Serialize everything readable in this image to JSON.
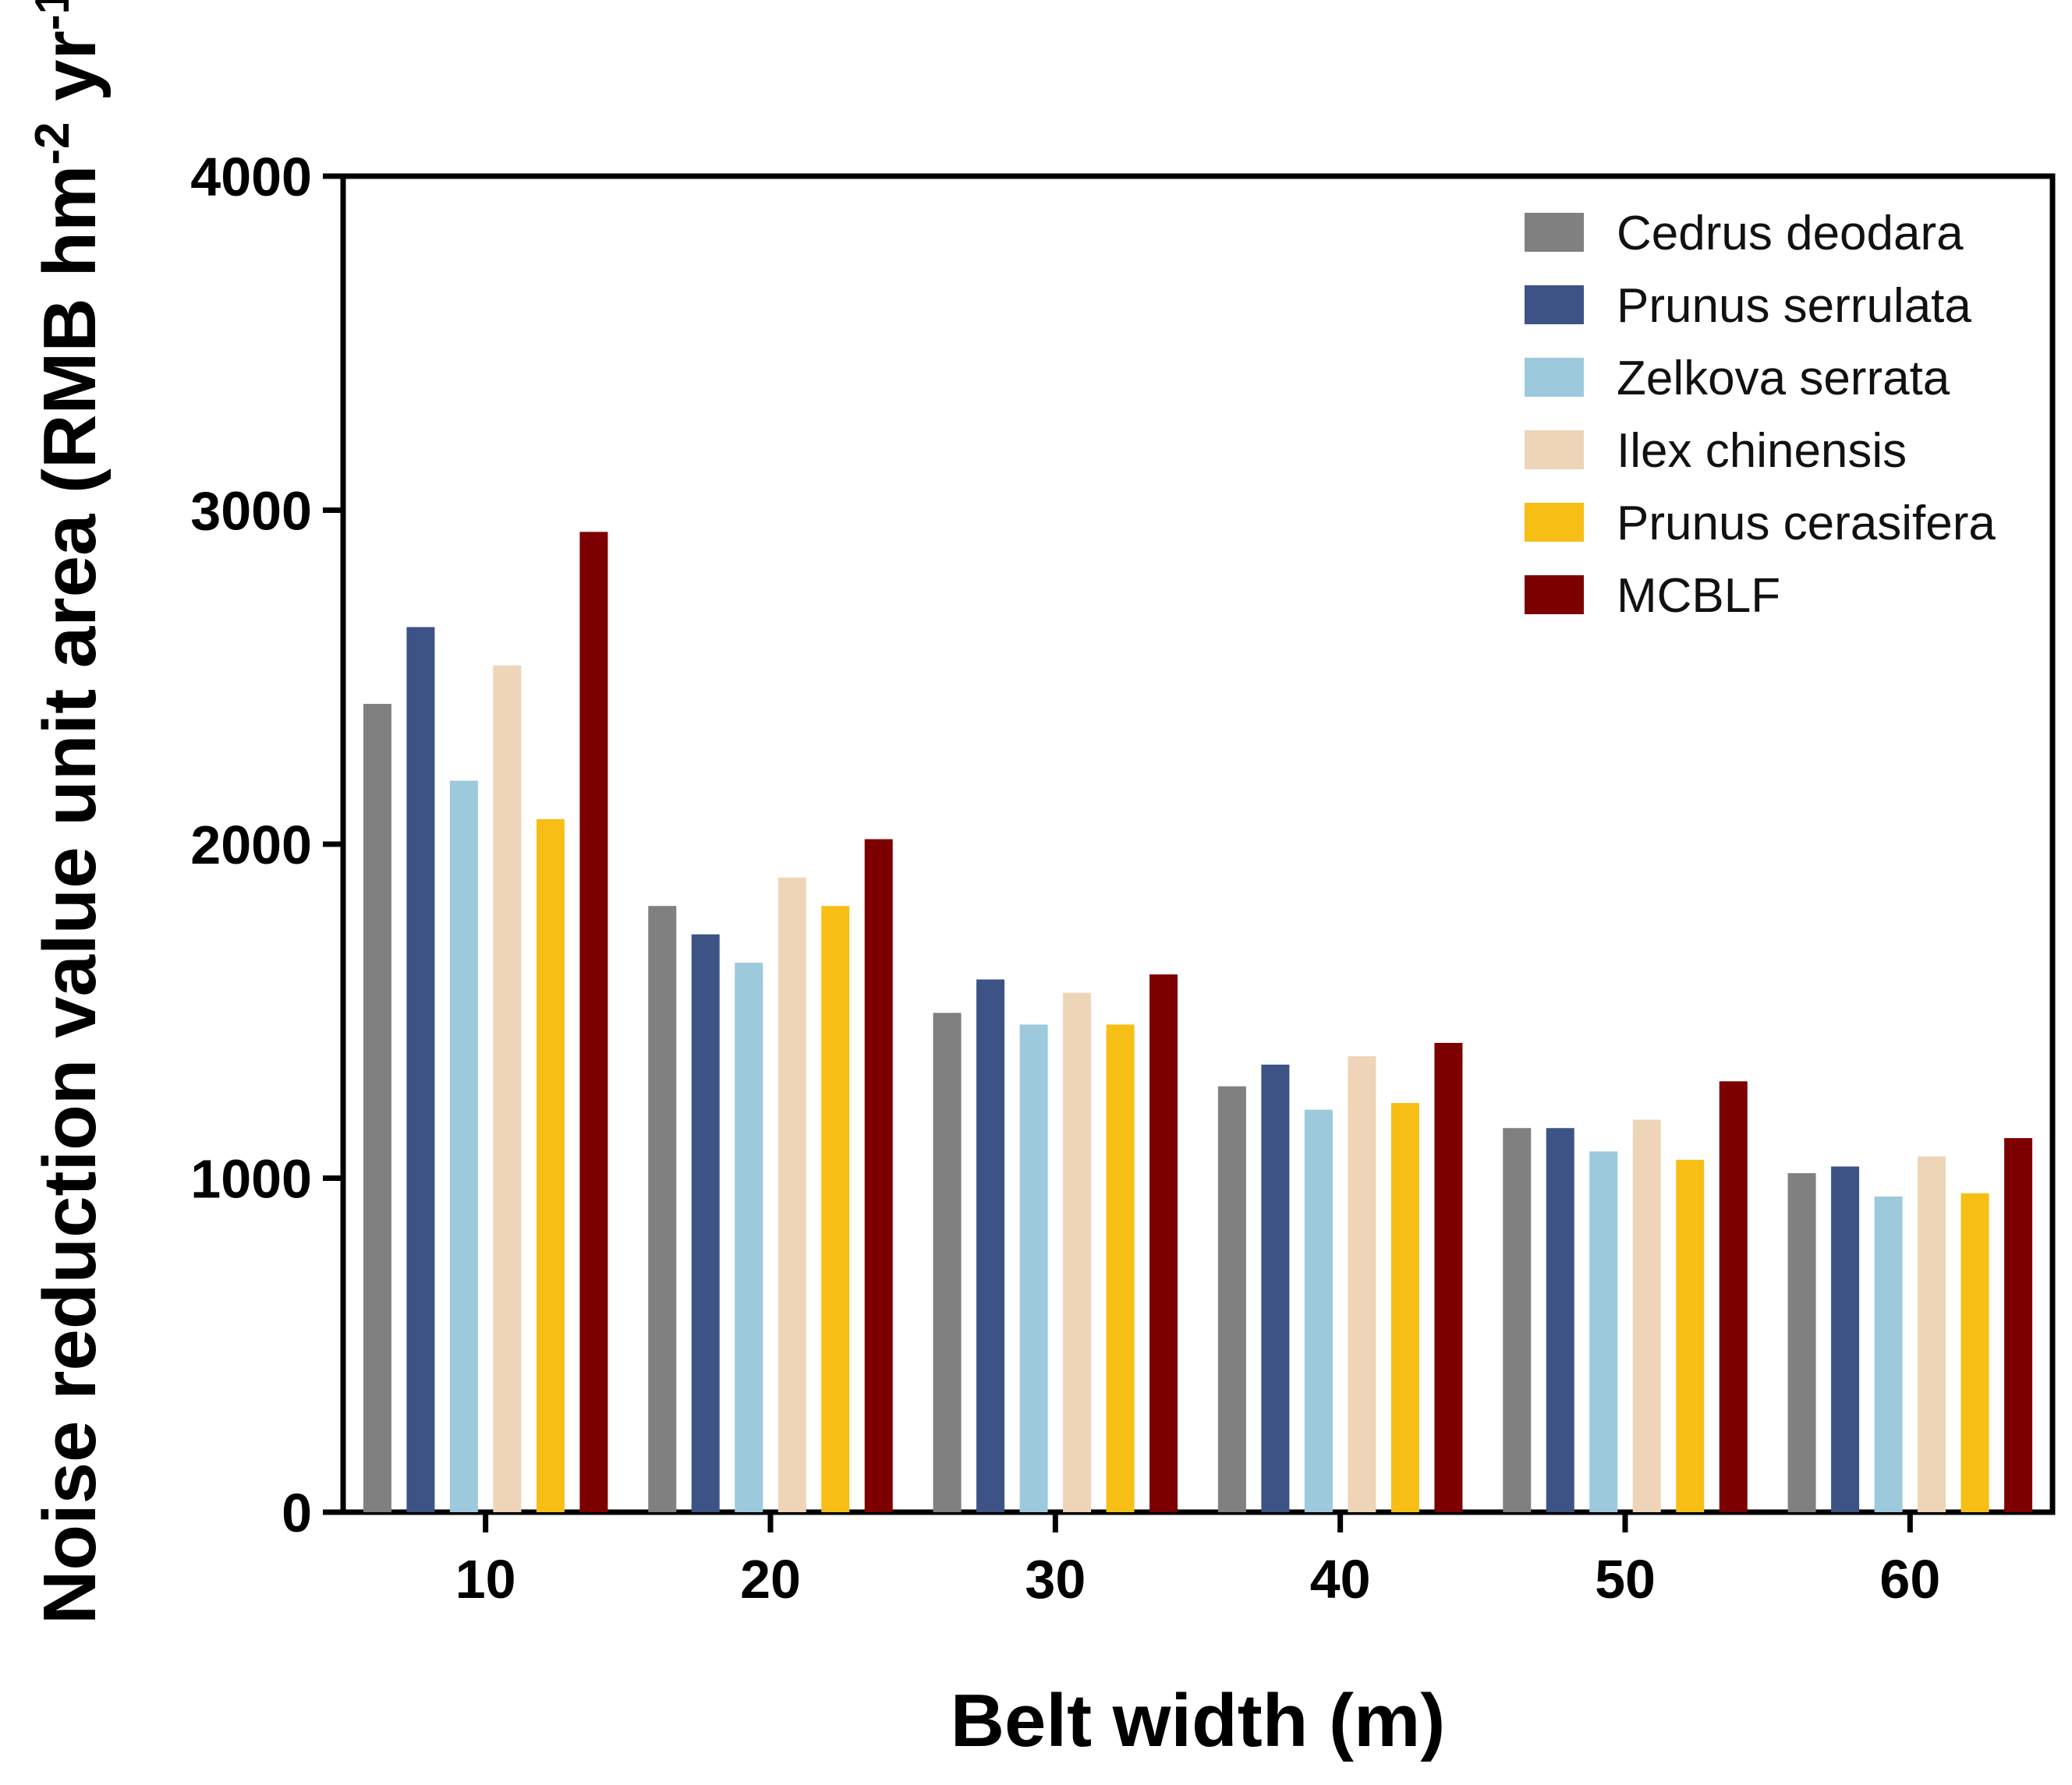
{
  "chart_data": {
    "type": "bar",
    "xlabel": "Belt width (m)",
    "ylabel_main": "Noise reduction value unit area (RMB hm",
    "ylabel_sup1": "-2",
    "ylabel_mid": " yr",
    "ylabel_sup2": "-1",
    "ylabel_end": ")",
    "categories": [
      "10",
      "20",
      "30",
      "40",
      "50",
      "60"
    ],
    "ylim": [
      0,
      4000
    ],
    "yticks": [
      "0",
      "1000",
      "2000",
      "3000",
      "4000"
    ],
    "ytick_values": [
      0,
      1000,
      2000,
      3000,
      4000
    ],
    "grid": false,
    "legend_position": "top-right",
    "series": [
      {
        "name": "Cedrus deodara",
        "color": "#808080",
        "values": [
          2420,
          1815,
          1495,
          1275,
          1150,
          1015
        ]
      },
      {
        "name": "Prunus serrulata",
        "color": "#3d5385",
        "values": [
          2650,
          1730,
          1595,
          1340,
          1150,
          1035
        ]
      },
      {
        "name": "Zelkova serrata",
        "color": "#9cc9dc",
        "values": [
          2190,
          1645,
          1460,
          1205,
          1080,
          945
        ]
      },
      {
        "name": "Ilex chinensis",
        "color": "#eed5b8",
        "values": [
          2535,
          1900,
          1555,
          1365,
          1175,
          1065
        ]
      },
      {
        "name": "Prunus cerasifera",
        "color": "#f7be16",
        "values": [
          2075,
          1815,
          1460,
          1225,
          1055,
          955
        ]
      },
      {
        "name": "MCBLF",
        "color": "#7d0000",
        "values": [
          2935,
          2015,
          1610,
          1405,
          1290,
          1120
        ]
      }
    ]
  }
}
